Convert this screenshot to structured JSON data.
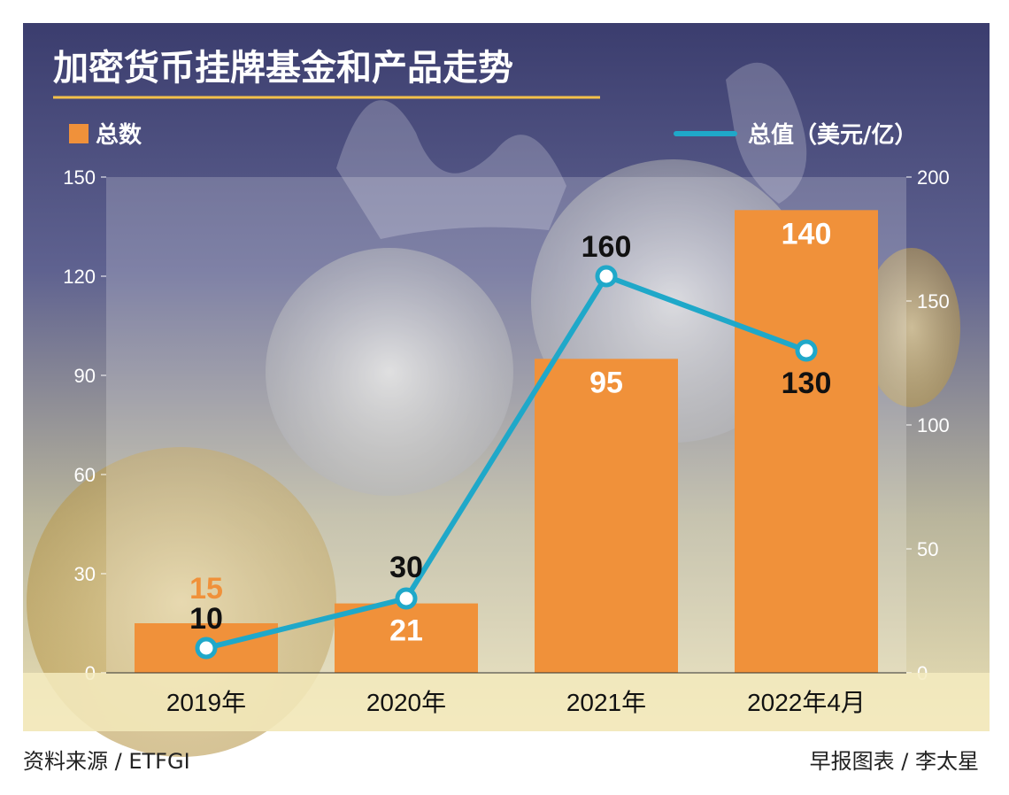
{
  "chart_data": {
    "type": "bar",
    "title": "加密货币挂牌基金和产品走势",
    "categories": [
      "2019年",
      "2020年",
      "2021年",
      "2022年4月"
    ],
    "series": [
      {
        "name": "总数",
        "type": "bar",
        "axis": "left",
        "color": "#f0913a",
        "values": [
          15,
          21,
          95,
          140
        ],
        "labels": [
          "15",
          "21",
          "95",
          "140"
        ]
      },
      {
        "name": "总值（美元/亿）",
        "type": "line",
        "axis": "right",
        "color": "#1fa8c9",
        "values": [
          10,
          30,
          160,
          130
        ],
        "labels": [
          "10",
          "30",
          "160",
          "130"
        ]
      }
    ],
    "y_left": {
      "range": [
        0,
        150
      ],
      "ticks": [
        "0",
        "30",
        "60",
        "90",
        "120",
        "150"
      ]
    },
    "y_right": {
      "range": [
        0,
        200
      ],
      "ticks": [
        "0",
        "50",
        "100",
        "150",
        "200"
      ]
    },
    "legend_placement": "top",
    "grid": false
  },
  "legend": {
    "bar_label": "总数",
    "line_label": "总值（美元/亿）"
  },
  "footer": {
    "source": "资料来源 / ETFGI",
    "credit": "早报图表 / 李太星"
  },
  "colors": {
    "bar": "#f0913a",
    "line": "#1fa8c9",
    "first_bar_label": "#f0913a",
    "title_underline": "#f4c14a"
  }
}
